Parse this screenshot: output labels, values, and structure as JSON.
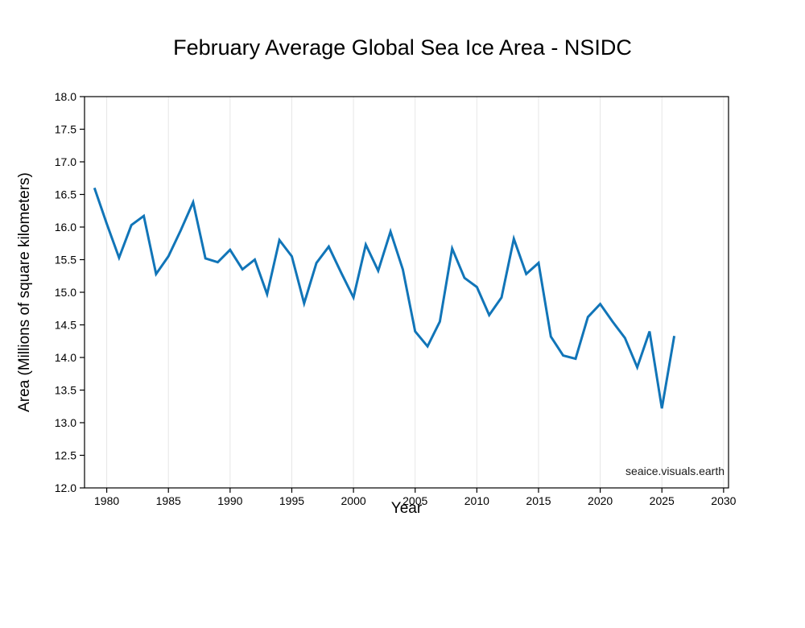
{
  "watermark": "seaice.visuals.earth",
  "chart_data": {
    "type": "line",
    "title": "February Average Global Sea Ice Area - NSIDC",
    "xlabel": "Year",
    "ylabel": "Area (Millions of square kilometers)",
    "xlim": [
      1978.2,
      2030.4
    ],
    "ylim": [
      12.0,
      18.0
    ],
    "x_ticks": [
      1980,
      1985,
      1990,
      1995,
      2000,
      2005,
      2010,
      2015,
      2020,
      2025,
      2030
    ],
    "y_ticks": [
      12.0,
      12.5,
      13.0,
      13.5,
      14.0,
      14.5,
      15.0,
      15.5,
      16.0,
      16.5,
      17.0,
      17.5,
      18.0
    ],
    "grid": "vertical-only",
    "legend_position": "none",
    "line_color": "#1175b8",
    "grid_color": "#e6e6e6",
    "spine_color": "#000000",
    "series": [
      {
        "name": "february-global-sea-ice-area",
        "x": [
          1979,
          1980,
          1981,
          1982,
          1983,
          1984,
          1985,
          1986,
          1987,
          1988,
          1989,
          1990,
          1991,
          1992,
          1993,
          1994,
          1995,
          1996,
          1997,
          1998,
          1999,
          2000,
          2001,
          2002,
          2003,
          2004,
          2005,
          2006,
          2007,
          2008,
          2009,
          2010,
          2011,
          2012,
          2013,
          2014,
          2015,
          2016,
          2017,
          2018,
          2019,
          2020,
          2021,
          2022,
          2023,
          2024,
          2025,
          2026
        ],
        "y": [
          16.6,
          16.05,
          15.53,
          16.03,
          16.17,
          15.28,
          15.55,
          15.95,
          16.38,
          15.52,
          15.46,
          15.65,
          15.35,
          15.5,
          14.97,
          15.8,
          15.55,
          14.83,
          15.45,
          15.7,
          15.3,
          14.92,
          15.73,
          15.33,
          15.93,
          15.35,
          14.4,
          14.17,
          14.55,
          15.67,
          15.22,
          15.08,
          14.65,
          14.92,
          15.82,
          15.28,
          15.45,
          14.32,
          14.03,
          13.98,
          14.62,
          14.82,
          14.55,
          14.3,
          13.85,
          14.4,
          13.22,
          14.33
        ]
      }
    ]
  }
}
